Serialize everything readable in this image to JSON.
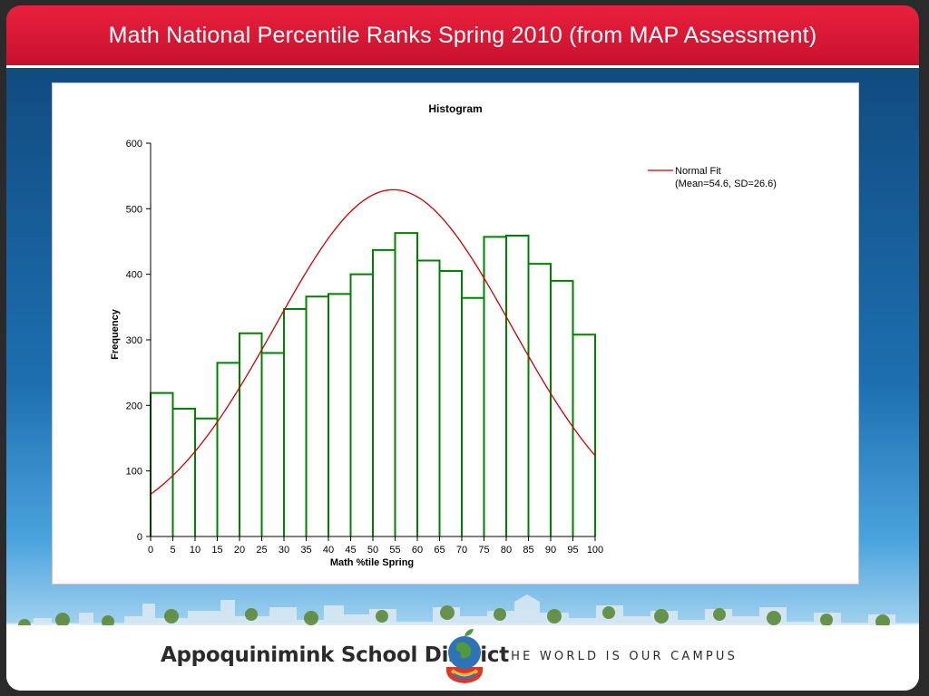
{
  "slide": {
    "title": "Math National Percentile Ranks Spring 2010 (from MAP Assessment)"
  },
  "footer": {
    "district_name": "Appoquinimink School District",
    "tagline": "THE WORLD IS OUR CAMPUS"
  },
  "colors": {
    "title_bar": "#c8102e",
    "bar_outline": "#008000",
    "normal_fit_line": "#cc0000"
  },
  "chart_data": {
    "type": "bar",
    "title": "Histogram",
    "xlabel": "Math %tile Spring",
    "ylabel": "Frequency",
    "x_ticks": [
      0,
      5,
      10,
      15,
      20,
      25,
      30,
      35,
      40,
      45,
      50,
      55,
      60,
      65,
      70,
      75,
      80,
      85,
      90,
      95,
      100
    ],
    "y_ticks": [
      0,
      100,
      200,
      300,
      400,
      500,
      600
    ],
    "xlim": [
      0,
      100
    ],
    "ylim": [
      0,
      600
    ],
    "bin_width": 5,
    "bins": [
      {
        "start": 0,
        "end": 5,
        "value": 219
      },
      {
        "start": 5,
        "end": 10,
        "value": 195
      },
      {
        "start": 10,
        "end": 15,
        "value": 180
      },
      {
        "start": 15,
        "end": 20,
        "value": 265
      },
      {
        "start": 20,
        "end": 25,
        "value": 310
      },
      {
        "start": 25,
        "end": 30,
        "value": 280
      },
      {
        "start": 30,
        "end": 35,
        "value": 347
      },
      {
        "start": 35,
        "end": 40,
        "value": 366
      },
      {
        "start": 40,
        "end": 45,
        "value": 370
      },
      {
        "start": 45,
        "end": 50,
        "value": 400
      },
      {
        "start": 50,
        "end": 55,
        "value": 437
      },
      {
        "start": 55,
        "end": 60,
        "value": 463
      },
      {
        "start": 60,
        "end": 65,
        "value": 421
      },
      {
        "start": 65,
        "end": 70,
        "value": 405
      },
      {
        "start": 70,
        "end": 75,
        "value": 364
      },
      {
        "start": 75,
        "end": 80,
        "value": 457
      },
      {
        "start": 80,
        "end": 85,
        "value": 459
      },
      {
        "start": 85,
        "end": 90,
        "value": 416
      },
      {
        "start": 90,
        "end": 95,
        "value": 390
      },
      {
        "start": 95,
        "end": 100,
        "value": 308
      }
    ],
    "normal_fit": {
      "legend_label": "Normal Fit",
      "legend_params": "(Mean=54.6, SD=26.6)",
      "mean": 54.6,
      "sd": 26.6,
      "peak": 529
    },
    "legend_position": "top-right",
    "grid": false
  }
}
